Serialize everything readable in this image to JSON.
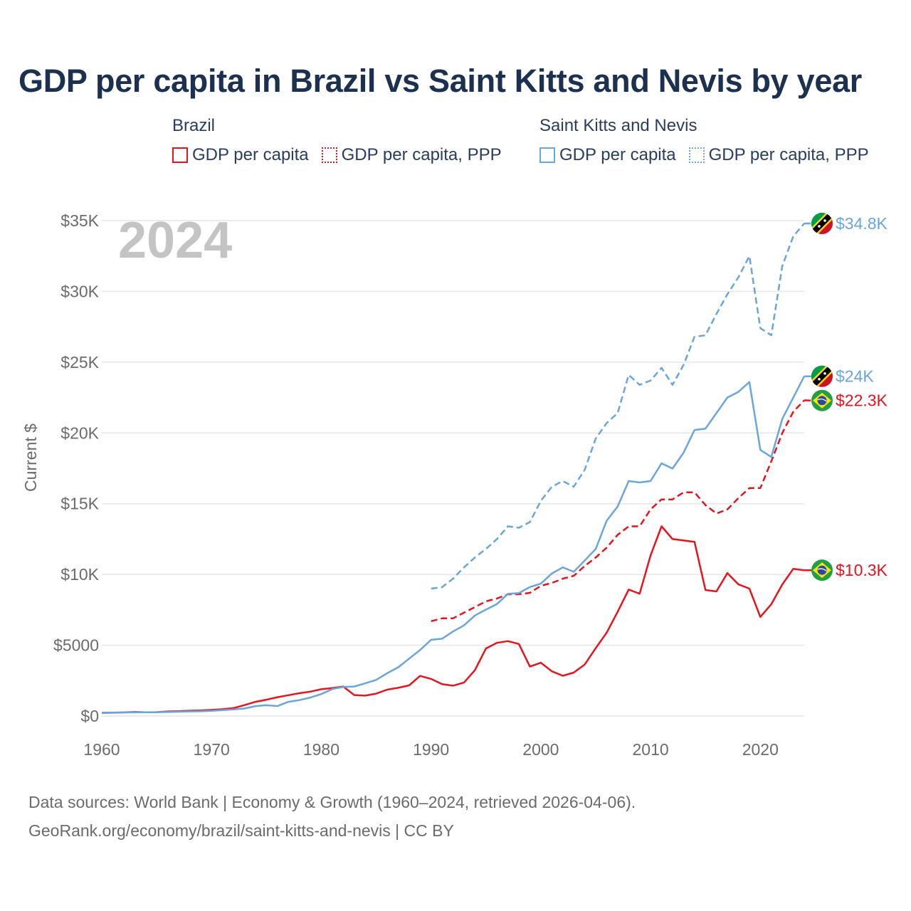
{
  "title": "GDP per capita in Brazil vs Saint Kitts and Nevis by year",
  "legend": {
    "groups": [
      {
        "name": "Brazil",
        "items": [
          "GDP per capita",
          "GDP per capita, PPP"
        ]
      },
      {
        "name": "Saint Kitts and Nevis",
        "items": [
          "GDP per capita",
          "GDP per capita, PPP"
        ]
      }
    ]
  },
  "colors": {
    "brazil": "#e8141d",
    "skn": "#6aa5dc",
    "grid": "#e6e6e6",
    "axis_text": "#6b6b6b",
    "year_overlay": "#c4c4c4"
  },
  "year_overlay": "2024",
  "source": {
    "line1": "Data sources: World Bank | Economy & Growth (1960–2024, retrieved 2026-04-06).",
    "line2": "GeoRank.org/economy/brazil/saint-kitts-and-nevis | CC BY"
  },
  "chart_data": {
    "type": "line",
    "ylabel": "Current $",
    "xlim": [
      1960,
      2024
    ],
    "ylim": [
      0,
      35000
    ],
    "x_ticks": [
      1960,
      1970,
      1980,
      1990,
      2000,
      2010,
      2020
    ],
    "y_ticks": [
      {
        "value": 0,
        "label": "$0"
      },
      {
        "value": 5000,
        "label": "$5000"
      },
      {
        "value": 10000,
        "label": "$10K"
      },
      {
        "value": 15000,
        "label": "$15K"
      },
      {
        "value": 20000,
        "label": "$20K"
      },
      {
        "value": 25000,
        "label": "$25K"
      },
      {
        "value": 30000,
        "label": "$30K"
      },
      {
        "value": 35000,
        "label": "$35K"
      }
    ],
    "series": [
      {
        "name": "Brazil GDP per capita",
        "country": "Brazil",
        "flag": "brazil",
        "color": "#e8141d",
        "style": "solid",
        "end_label": "$10.3K",
        "start_year": 1960,
        "values": [
          220,
          230,
          250,
          280,
          260,
          270,
          320,
          340,
          370,
          390,
          430,
          480,
          560,
          770,
          1000,
          1150,
          1330,
          1470,
          1610,
          1720,
          1890,
          1970,
          2080,
          1480,
          1440,
          1580,
          1860,
          1990,
          2160,
          2830,
          2620,
          2250,
          2140,
          2360,
          3240,
          4770,
          5170,
          5290,
          5090,
          3490,
          3760,
          3160,
          2840,
          3070,
          3640,
          4790,
          5890,
          7360,
          8930,
          8640,
          11350,
          13400,
          12500,
          12400,
          12300,
          8900,
          8800,
          10100,
          9300,
          9000,
          7000,
          7900,
          9300,
          10400,
          10300
        ]
      },
      {
        "name": "Brazil GDP per capita, PPP",
        "country": "Brazil",
        "flag": "brazil",
        "color": "#e8141d",
        "style": "dashed",
        "end_label": "$22.3K",
        "start_year": 1990,
        "values": [
          6700,
          6900,
          6900,
          7300,
          7700,
          8100,
          8300,
          8600,
          8600,
          8700,
          9200,
          9400,
          9700,
          9900,
          10600,
          11200,
          11900,
          12800,
          13400,
          13400,
          14600,
          15300,
          15300,
          15800,
          15800,
          14900,
          14300,
          14600,
          15400,
          16100,
          16100,
          18000,
          20000,
          21500,
          22300
        ]
      },
      {
        "name": "Saint Kitts and Nevis GDP per capita",
        "country": "Saint Kitts and Nevis",
        "flag": "skn",
        "color": "#6aa5dc",
        "style": "solid",
        "end_label": "$24K",
        "start_year": 1960,
        "values": [
          240,
          245,
          250,
          255,
          260,
          270,
          280,
          300,
          320,
          330,
          360,
          410,
          470,
          530,
          700,
          760,
          700,
          1000,
          1120,
          1300,
          1550,
          1900,
          2050,
          2080,
          2310,
          2550,
          3020,
          3440,
          4050,
          4660,
          5380,
          5460,
          5970,
          6400,
          7100,
          7520,
          7910,
          8630,
          8680,
          9110,
          9350,
          10070,
          10500,
          10190,
          10990,
          11800,
          13800,
          14800,
          16600,
          16500,
          16600,
          17850,
          17480,
          18600,
          20200,
          20300,
          21400,
          22500,
          22900,
          23600,
          18800,
          18300,
          21000,
          22500,
          24000
        ]
      },
      {
        "name": "Saint Kitts and Nevis GDP per capita, PPP",
        "country": "Saint Kitts and Nevis",
        "flag": "skn",
        "color": "#6aa5dc",
        "style": "dashed",
        "end_label": "$34.8K",
        "start_year": 1990,
        "values": [
          9000,
          9100,
          9700,
          10500,
          11200,
          11800,
          12500,
          13400,
          13300,
          13700,
          15200,
          16200,
          16600,
          16200,
          17400,
          19600,
          20700,
          21400,
          24100,
          23400,
          23700,
          24600,
          23400,
          24800,
          26800,
          26900,
          28400,
          29800,
          31000,
          32500,
          27400,
          26900,
          31800,
          33900,
          34800
        ]
      }
    ]
  }
}
